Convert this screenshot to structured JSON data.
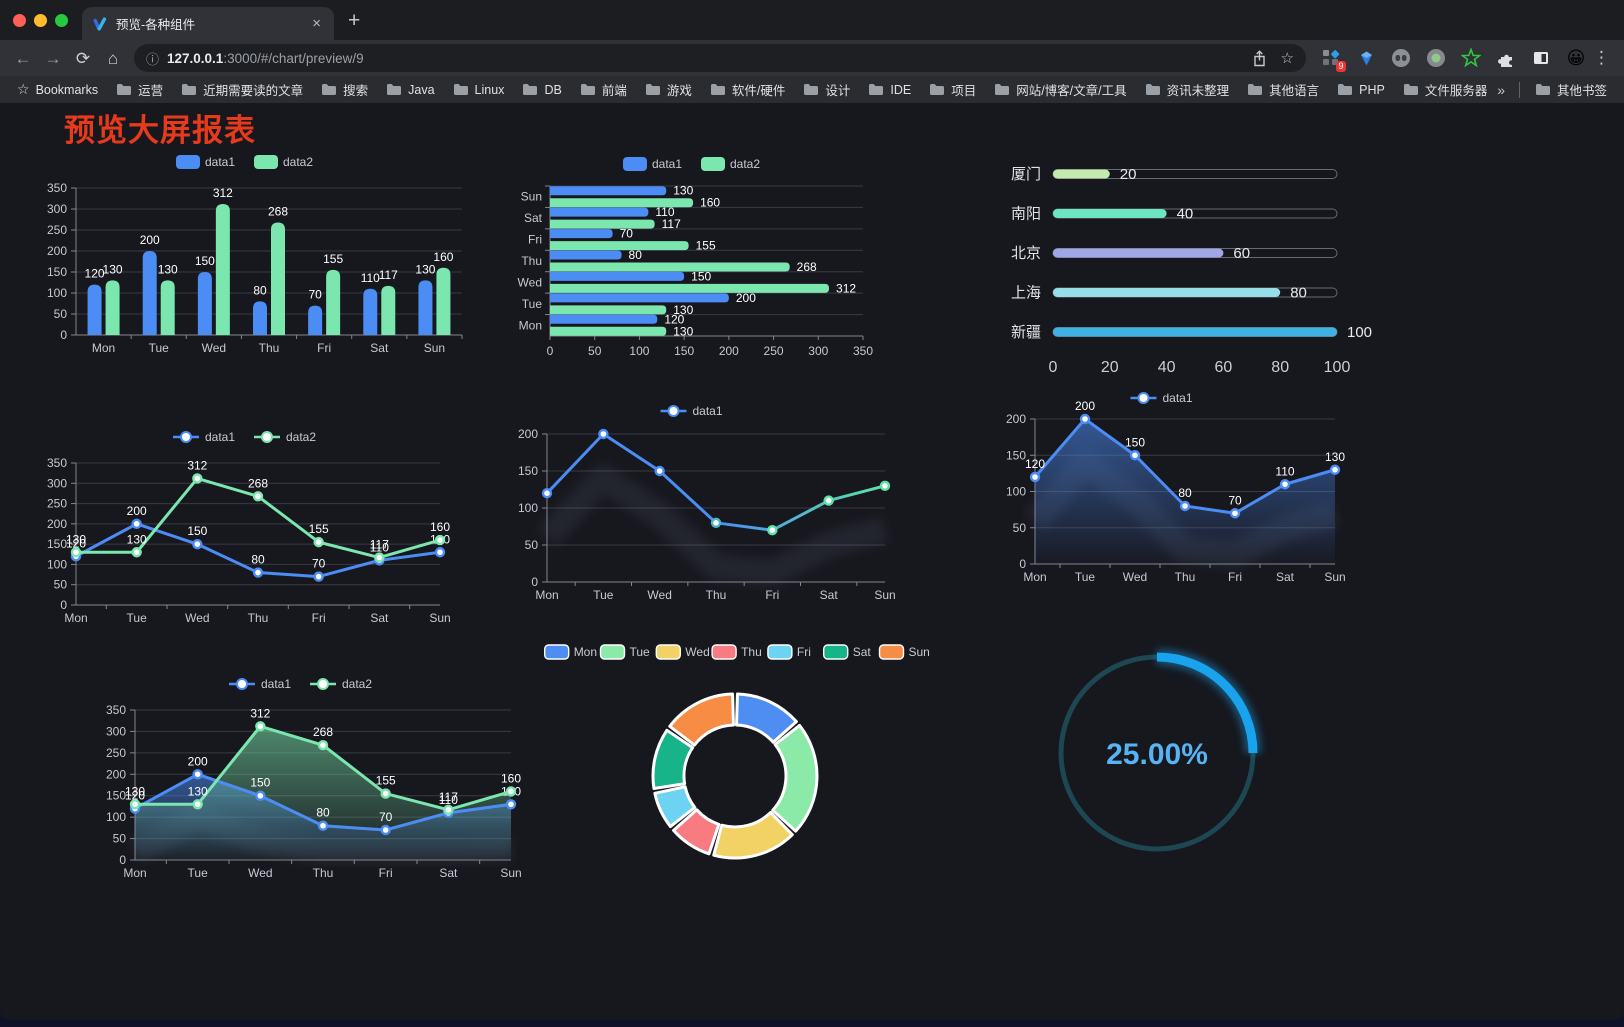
{
  "browser": {
    "traffic_light_colors": [
      "#ff5f57",
      "#febc2e",
      "#28c840"
    ],
    "tab_title": "预览-各种组件",
    "url_host": "127.0.0.1",
    "url_path": ":3000/#/chart/preview/9",
    "icons": {
      "close_tab": "×",
      "new_tab": "+",
      "back": "←",
      "forward": "→",
      "reload": "⟳",
      "home": "⌂",
      "info": "ⓘ",
      "star": "☆",
      "menu_dots": "⋮",
      "overflow": "»",
      "bookmarks_star": "☆"
    },
    "extension_badge": "9",
    "bookmarks_root_label": "Bookmarks",
    "bookmarks": [
      "运营",
      "近期需要读的文章",
      "搜索",
      "Java",
      "Linux",
      "DB",
      "前端",
      "游戏",
      "软件/硬件",
      "设计",
      "IDE",
      "项目",
      "网站/博客/文章/工具",
      "资讯未整理",
      "其他语言",
      "PHP",
      "文件服务器"
    ],
    "other_bookmarks_label": "其他书签"
  },
  "page": {
    "title": "预览大屏报表",
    "title_color": "#e63a1d",
    "background": "#17171e"
  },
  "chart_data": [
    {
      "id": "grouped-bar",
      "type": "bar",
      "categories": [
        "Mon",
        "Tue",
        "Wed",
        "Thu",
        "Fri",
        "Sat",
        "Sun"
      ],
      "series": [
        {
          "name": "data1",
          "color": "#4c8df5",
          "values": [
            120,
            200,
            150,
            80,
            70,
            110,
            130
          ]
        },
        {
          "name": "data2",
          "color": "#7be7ae",
          "values": [
            130,
            130,
            312,
            268,
            155,
            117,
            160
          ]
        }
      ],
      "ylim": [
        0,
        350
      ],
      "ytick_step": 50,
      "grid": true,
      "legend_position": "top"
    },
    {
      "id": "grouped-hbar",
      "type": "hbar",
      "categories": [
        "Mon",
        "Tue",
        "Wed",
        "Thu",
        "Fri",
        "Sat",
        "Sun"
      ],
      "series": [
        {
          "name": "data1",
          "color": "#4c8df5",
          "values": [
            120,
            200,
            150,
            80,
            70,
            110,
            130
          ]
        },
        {
          "name": "data2",
          "color": "#7be7ae",
          "values": [
            130,
            130,
            312,
            268,
            155,
            117,
            160
          ]
        }
      ],
      "xlim": [
        0,
        350
      ],
      "xticks": [
        0,
        50,
        100,
        150,
        200,
        250,
        300,
        350
      ],
      "legend_position": "top"
    },
    {
      "id": "city-progress",
      "type": "progress",
      "max": 100,
      "xticks": [
        0,
        20,
        40,
        60,
        80,
        100
      ],
      "items": [
        {
          "label": "厦门",
          "value": 20,
          "color": "#c4ebad"
        },
        {
          "label": "南阳",
          "value": 40,
          "color": "#6be6c1"
        },
        {
          "label": "北京",
          "value": 60,
          "color": "#a0a7e6"
        },
        {
          "label": "上海",
          "value": 80,
          "color": "#96dee8"
        },
        {
          "label": "新疆",
          "value": 100,
          "color": "#3fb1e3"
        }
      ]
    },
    {
      "id": "dual-line",
      "type": "line",
      "categories": [
        "Mon",
        "Tue",
        "Wed",
        "Thu",
        "Fri",
        "Sat",
        "Sun"
      ],
      "series": [
        {
          "name": "data1",
          "color": "#4c8df5",
          "values": [
            120,
            200,
            150,
            80,
            70,
            110,
            130
          ]
        },
        {
          "name": "data2",
          "color": "#7be7ae",
          "values": [
            130,
            130,
            312,
            268,
            155,
            117,
            160
          ]
        }
      ],
      "ylim": [
        0,
        350
      ],
      "ytick_step": 50,
      "labels": true,
      "legend_position": "top"
    },
    {
      "id": "gradient-line",
      "type": "line",
      "categories": [
        "Mon",
        "Tue",
        "Wed",
        "Thu",
        "Fri",
        "Sat",
        "Sun"
      ],
      "series": [
        {
          "name": "data1",
          "color": "#4a8df5",
          "color2": "#5ce3a3",
          "gradient": true,
          "values": [
            120,
            200,
            150,
            80,
            70,
            110,
            130
          ]
        }
      ],
      "ylim": [
        0,
        200
      ],
      "ytick_step": 50,
      "labels": false,
      "shadow": true,
      "legend_position": "top"
    },
    {
      "id": "area-single",
      "type": "line",
      "categories": [
        "Mon",
        "Tue",
        "Wed",
        "Thu",
        "Fri",
        "Sat",
        "Sun"
      ],
      "series": [
        {
          "name": "data1",
          "color": "#4c8df5",
          "area": true,
          "values": [
            120,
            200,
            150,
            80,
            70,
            110,
            130
          ]
        }
      ],
      "ylim": [
        0,
        200
      ],
      "ytick_step": 50,
      "labels": true,
      "shadow": true,
      "legend_position": "top"
    },
    {
      "id": "dual-area",
      "type": "line",
      "categories": [
        "Mon",
        "Tue",
        "Wed",
        "Thu",
        "Fri",
        "Sat",
        "Sun"
      ],
      "series": [
        {
          "name": "data1",
          "color": "#4c8df5",
          "area": true,
          "values": [
            120,
            200,
            150,
            80,
            70,
            110,
            130
          ]
        },
        {
          "name": "data2",
          "color": "#7be7ae",
          "area": true,
          "values": [
            130,
            130,
            312,
            268,
            155,
            117,
            160
          ]
        }
      ],
      "ylim": [
        0,
        350
      ],
      "ytick_step": 50,
      "labels": true,
      "shadow": true,
      "legend_position": "top"
    },
    {
      "id": "donut",
      "type": "pie",
      "inner_radius": 51,
      "outer_radius": 82,
      "items": [
        {
          "label": "Mon",
          "value": 120,
          "color": "#4e8df2"
        },
        {
          "label": "Tue",
          "value": 200,
          "color": "#8ceaa9"
        },
        {
          "label": "Wed",
          "value": 150,
          "color": "#f2d264"
        },
        {
          "label": "Thu",
          "value": 80,
          "color": "#f97b82"
        },
        {
          "label": "Fri",
          "value": 70,
          "color": "#6dd3f2"
        },
        {
          "label": "Sat",
          "value": 110,
          "color": "#17b389"
        },
        {
          "label": "Sun",
          "value": 130,
          "color": "#f78d45"
        }
      ],
      "legend_position": "top"
    },
    {
      "id": "gauge",
      "type": "gauge",
      "percent": 25,
      "value_label": "25.00%",
      "track_color": "#1d4752",
      "progress_color": "#18a3ec",
      "text_color": "#57b4f4"
    }
  ]
}
